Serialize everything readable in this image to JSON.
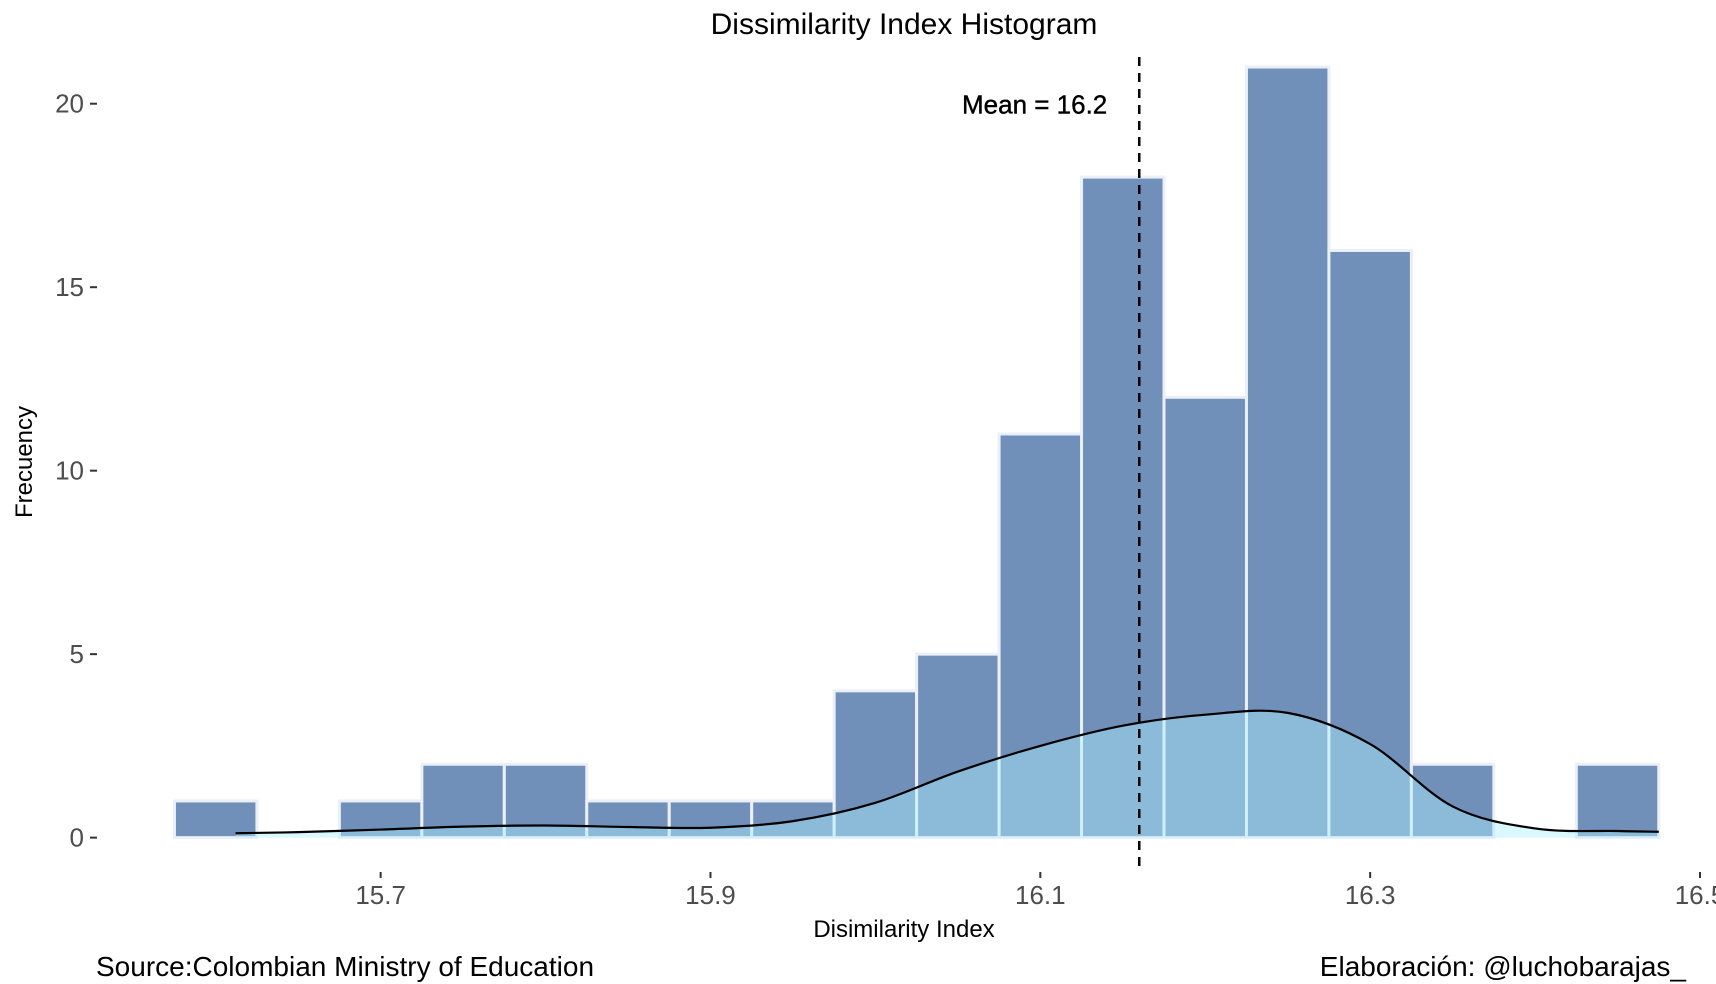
{
  "chart_data": {
    "type": "bar",
    "title": "Dissimilarity Index Histogram",
    "xlabel": "Disimilarity Index",
    "ylabel": "Frecuency",
    "xlim": [
      15.545,
      16.5
    ],
    "ylim": [
      -1.1,
      21.6
    ],
    "x_ticks": [
      15.7,
      15.9,
      16.1,
      16.3,
      16.5
    ],
    "x_tick_labels": [
      "15.7",
      "15.9",
      "16.1",
      "16.3",
      "16.5"
    ],
    "y_ticks": [
      0,
      5,
      10,
      15,
      20
    ],
    "y_tick_labels": [
      "0",
      "5",
      "10",
      "15",
      "20"
    ],
    "bin_width": 0.05,
    "bins": [
      {
        "x": 15.6,
        "count": 1
      },
      {
        "x": 15.65,
        "count": 0
      },
      {
        "x": 15.7,
        "count": 1
      },
      {
        "x": 15.75,
        "count": 2
      },
      {
        "x": 15.8,
        "count": 2
      },
      {
        "x": 15.85,
        "count": 1
      },
      {
        "x": 15.9,
        "count": 1
      },
      {
        "x": 15.95,
        "count": 1
      },
      {
        "x": 16.0,
        "count": 4
      },
      {
        "x": 16.05,
        "count": 5
      },
      {
        "x": 16.1,
        "count": 11
      },
      {
        "x": 16.15,
        "count": 18
      },
      {
        "x": 16.2,
        "count": 12
      },
      {
        "x": 16.25,
        "count": 21
      },
      {
        "x": 16.3,
        "count": 16
      },
      {
        "x": 16.35,
        "count": 2
      },
      {
        "x": 16.4,
        "count": 0
      },
      {
        "x": 16.45,
        "count": 2
      }
    ],
    "density_curve": {
      "x": [
        15.612,
        15.65,
        15.7,
        15.75,
        15.8,
        15.85,
        15.9,
        15.95,
        16.0,
        16.05,
        16.1,
        16.15,
        16.2,
        16.25,
        16.3,
        16.35,
        16.4,
        16.45,
        16.475
      ],
      "y": [
        0.12,
        0.15,
        0.22,
        0.3,
        0.33,
        0.29,
        0.27,
        0.45,
        0.95,
        1.8,
        2.5,
        3.05,
        3.35,
        3.4,
        2.55,
        0.85,
        0.25,
        0.18,
        0.16
      ]
    },
    "mean": 16.16,
    "mean_label": "Mean = 16.2",
    "grid": false,
    "legend": "none",
    "colors": {
      "bar_fill": "#7090b9",
      "bar_stroke": "#ebeff7",
      "density_fill": "#aef0ff",
      "density_line": "#000000",
      "mean_line": "#000000"
    }
  },
  "captions": {
    "source": "Source:Colombian Ministry of Education",
    "credit": "Elaboración: @luchobarajas_"
  }
}
